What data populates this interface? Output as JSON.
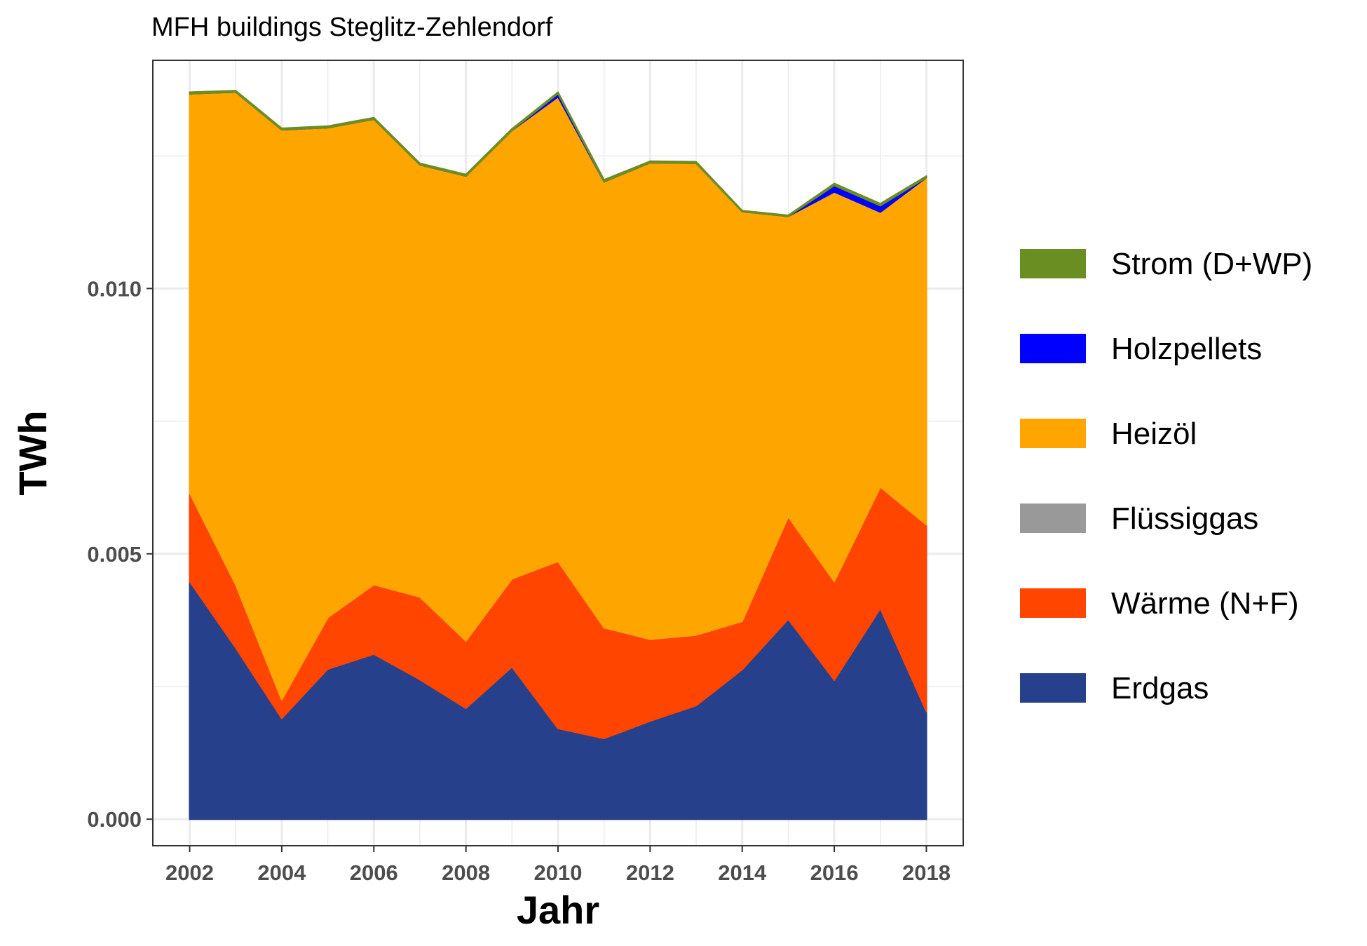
{
  "chart_data": {
    "type": "area",
    "stacked": true,
    "title": "MFH buildings Steglitz-Zehlendorf",
    "xlabel": "Jahr",
    "ylabel": "TWh",
    "x": [
      2002,
      2003,
      2004,
      2005,
      2006,
      2007,
      2008,
      2009,
      2010,
      2011,
      2012,
      2013,
      2014,
      2015,
      2016,
      2017,
      2018
    ],
    "xlim": [
      2001.2,
      2018.8
    ],
    "ylim": [
      -0.0005,
      0.0143
    ],
    "xticks": [
      "2002",
      "2004",
      "2006",
      "2008",
      "2010",
      "2012",
      "2014",
      "2016",
      "2018"
    ],
    "yticks": [
      "0.000",
      "0.005",
      "0.010"
    ],
    "grid": true,
    "legend_position": "right",
    "series": [
      {
        "name": "Erdgas",
        "color": "#27408B",
        "values": [
          0.00448,
          0.00323,
          0.0019,
          0.00283,
          0.00311,
          0.00263,
          0.00209,
          0.00287,
          0.00171,
          0.00152,
          0.00185,
          0.00214,
          0.00282,
          0.00377,
          0.00262,
          0.00397,
          0.00203
        ]
      },
      {
        "name": "Wärme (N+F)",
        "color": "#FF4500",
        "values": [
          0.00167,
          0.00119,
          0.00035,
          0.00097,
          0.00131,
          0.00156,
          0.00127,
          0.00166,
          0.00315,
          0.00209,
          0.00154,
          0.00133,
          0.00091,
          0.00193,
          0.00186,
          0.00229,
          0.00352
        ]
      },
      {
        "name": "Flüssiggas",
        "color": "#999999",
        "values": [
          0,
          0,
          0,
          0,
          0,
          0,
          0,
          0,
          0,
          0,
          0,
          0,
          0,
          0,
          0,
          0,
          0
        ]
      },
      {
        "name": "Heizöl",
        "color": "#FFA500",
        "values": [
          0.00752,
          0.00928,
          0.01074,
          0.00923,
          0.00877,
          0.00814,
          0.00876,
          0.00845,
          0.00875,
          0.0084,
          0.00898,
          0.00889,
          0.00772,
          0.00566,
          0.00734,
          0.00518,
          0.00654
        ]
      },
      {
        "name": "Holzpellets",
        "color": "#0000FF",
        "values": [
          0,
          0,
          0,
          0,
          0,
          0,
          0,
          0,
          6e-05,
          0,
          0,
          0,
          0,
          0,
          0.00012,
          0.00012,
          0
        ]
      },
      {
        "name": "Strom (D+WP)",
        "color": "#6B8E23",
        "values": [
          3e-05,
          3e-05,
          3e-05,
          3e-05,
          3e-05,
          3e-05,
          3e-05,
          3e-05,
          3e-05,
          4e-05,
          3e-05,
          3e-05,
          2e-05,
          2e-05,
          4e-05,
          4e-05,
          3e-05
        ]
      }
    ],
    "legend_order": [
      "Strom (D+WP)",
      "Holzpellets",
      "Heizöl",
      "Flüssiggas",
      "Wärme (N+F)",
      "Erdgas"
    ]
  }
}
